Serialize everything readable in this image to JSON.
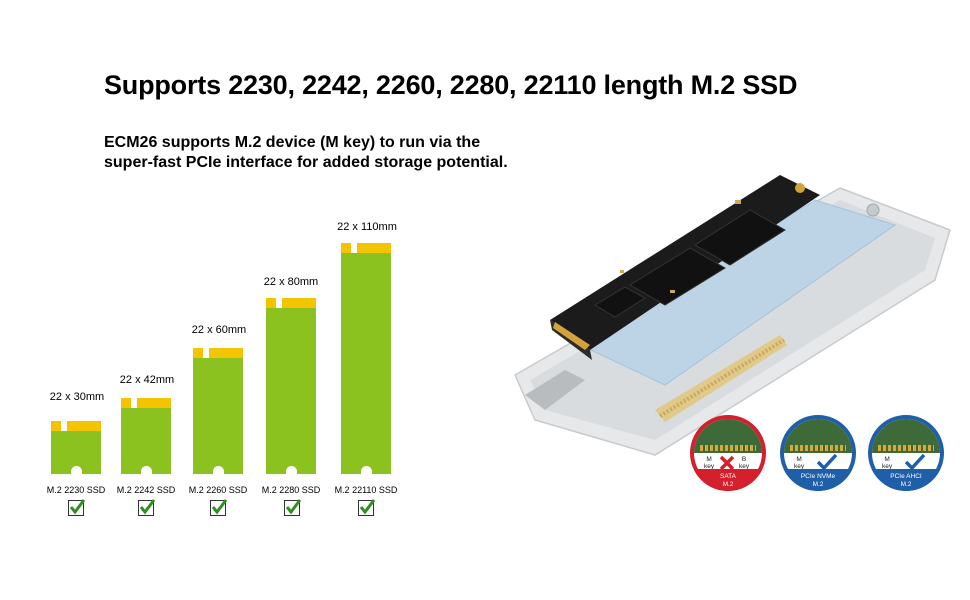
{
  "headline": "Supports 2230, 2242, 2260, 2280, 22110 length M.2 SSD",
  "description": {
    "line1": "ECM26 supports M.2 device (M key) to run via the",
    "line2": "super-fast PCIe interface for added storage potential."
  },
  "drives": [
    {
      "size": "22 x 30mm",
      "caption": "M.2 2230 SSD",
      "supported": true
    },
    {
      "size": "22 x 42mm",
      "caption": "M.2 2242 SSD",
      "supported": true
    },
    {
      "size": "22 x 60mm",
      "caption": "M.2 2260 SSD",
      "supported": true
    },
    {
      "size": "22 x 80mm",
      "caption": "M.2 2280 SSD",
      "supported": true
    },
    {
      "size": "22 x 110mm",
      "caption": "M.2 22110 SSD",
      "supported": true
    }
  ],
  "badges": [
    {
      "keys": [
        "M\nkey",
        "B\nkey"
      ],
      "label": "SATA\nM.2",
      "supported": false,
      "color": "#d4202c"
    },
    {
      "keys": [
        "M\nkey"
      ],
      "label": "PCIe NVMe\nM.2",
      "supported": true,
      "color": "#1f5fa8"
    },
    {
      "keys": [
        "M\nkey"
      ],
      "label": "PCIe AHCI\nM.2",
      "supported": true,
      "color": "#1f5fa8"
    }
  ],
  "colors": {
    "drive": "#8cc21f",
    "contacts": "#f5c400",
    "check": "#2f8f1f",
    "cross": "#d4202c"
  }
}
